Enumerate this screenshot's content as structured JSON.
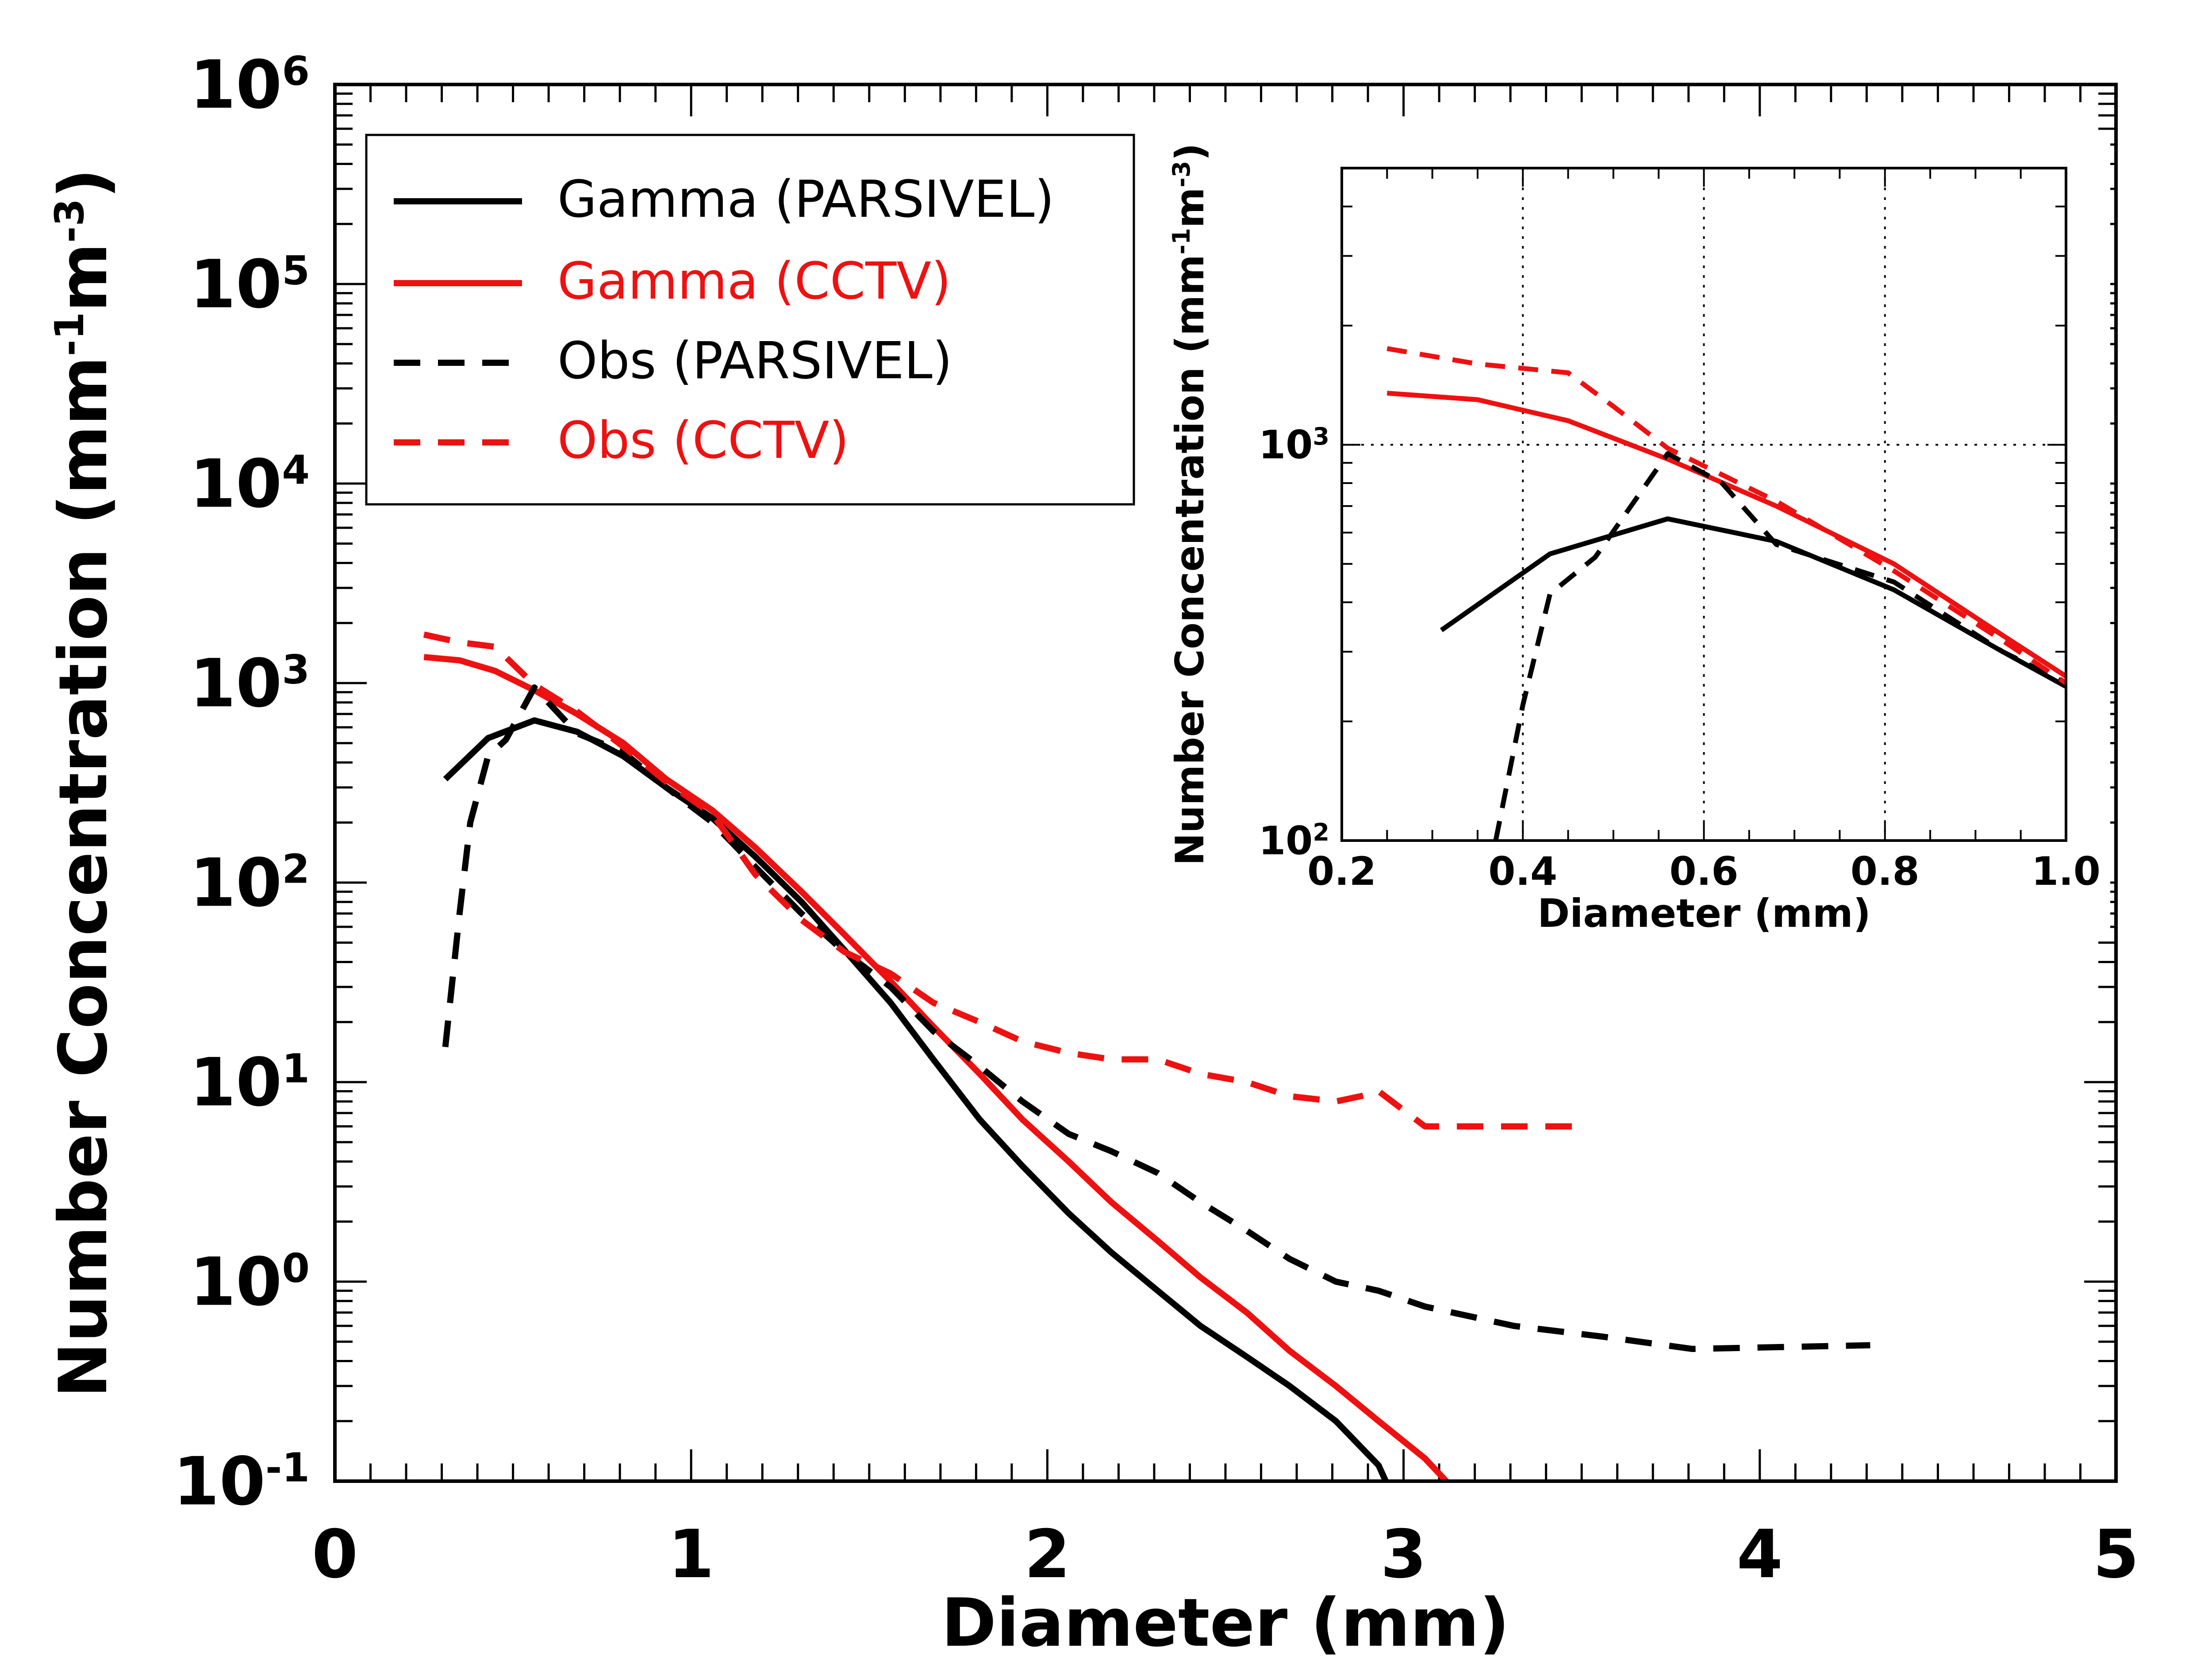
{
  "chart_data": [
    {
      "type": "line",
      "role": "main",
      "xlabel": "Diameter (mm)",
      "ylabel": "Number Concentration (mm-1m-3)",
      "ylabel_parts": {
        "base": "Number Concentration (mm",
        "sup1": "-1",
        "mid": "m",
        "sup2": "-3",
        "end": ")"
      },
      "xlim": [
        0,
        5
      ],
      "ylim": [
        0.1,
        1000000
      ],
      "yscale": "log",
      "x_ticks": [
        {
          "value": 0,
          "label": "0"
        },
        {
          "value": 1,
          "label": "1"
        },
        {
          "value": 2,
          "label": "2"
        },
        {
          "value": 3,
          "label": "3"
        },
        {
          "value": 4,
          "label": "4"
        },
        {
          "value": 5,
          "label": "5"
        }
      ],
      "y_ticks": [
        {
          "value": 0.1,
          "base": "10",
          "exp": "-1"
        },
        {
          "value": 1,
          "base": "10",
          "exp": "0"
        },
        {
          "value": 10,
          "base": "10",
          "exp": "1"
        },
        {
          "value": 100,
          "base": "10",
          "exp": "2"
        },
        {
          "value": 1000,
          "base": "10",
          "exp": "3"
        },
        {
          "value": 10000,
          "base": "10",
          "exp": "4"
        },
        {
          "value": 100000,
          "base": "10",
          "exp": "5"
        },
        {
          "value": 1000000,
          "base": "10",
          "exp": "6"
        }
      ],
      "grid": false,
      "legend_position": "top-left",
      "series": [
        {
          "name": "Gamma (PARSIVEL)",
          "color": "#000000",
          "dash": "solid",
          "points": [
            [
              0.31,
              330
            ],
            [
              0.43,
              530
            ],
            [
              0.56,
              650
            ],
            [
              0.68,
              570
            ],
            [
              0.81,
              430
            ],
            [
              0.93,
              300
            ],
            [
              1.06,
              210
            ],
            [
              1.18,
              135
            ],
            [
              1.31,
              80
            ],
            [
              1.43,
              46
            ],
            [
              1.56,
              25
            ],
            [
              1.68,
              13
            ],
            [
              1.81,
              6.5
            ],
            [
              1.93,
              3.8
            ],
            [
              2.06,
              2.2
            ],
            [
              2.18,
              1.4
            ],
            [
              2.31,
              0.9
            ],
            [
              2.43,
              0.6
            ],
            [
              2.56,
              0.42
            ],
            [
              2.68,
              0.3
            ],
            [
              2.81,
              0.2
            ],
            [
              2.93,
              0.12
            ],
            [
              2.95,
              0.1
            ]
          ]
        },
        {
          "name": "Gamma (CCTV)",
          "color": "#ee1111",
          "dash": "solid",
          "points": [
            [
              0.25,
              1350
            ],
            [
              0.35,
              1300
            ],
            [
              0.45,
              1150
            ],
            [
              0.56,
              920
            ],
            [
              0.68,
              700
            ],
            [
              0.81,
              500
            ],
            [
              0.93,
              330
            ],
            [
              1.06,
              230
            ],
            [
              1.18,
              150
            ],
            [
              1.31,
              90
            ],
            [
              1.43,
              55
            ],
            [
              1.56,
              32
            ],
            [
              1.68,
              19
            ],
            [
              1.81,
              11
            ],
            [
              1.93,
              6.5
            ],
            [
              2.06,
              4
            ],
            [
              2.18,
              2.5
            ],
            [
              2.31,
              1.6
            ],
            [
              2.43,
              1.05
            ],
            [
              2.56,
              0.7
            ],
            [
              2.68,
              0.45
            ],
            [
              2.81,
              0.3
            ],
            [
              2.93,
              0.2
            ],
            [
              3.06,
              0.13
            ],
            [
              3.12,
              0.1
            ]
          ]
        },
        {
          "name": "Obs (PARSIVEL)",
          "color": "#000000",
          "dash": "dashed",
          "points": [
            [
              0.31,
              15
            ],
            [
              0.35,
              70
            ],
            [
              0.38,
              200
            ],
            [
              0.43,
              430
            ],
            [
              0.48,
              520
            ],
            [
              0.56,
              950
            ],
            [
              0.68,
              560
            ],
            [
              0.81,
              450
            ],
            [
              0.93,
              300
            ],
            [
              1.06,
              200
            ],
            [
              1.18,
              120
            ],
            [
              1.31,
              70
            ],
            [
              1.43,
              45
            ],
            [
              1.56,
              30
            ],
            [
              1.68,
              18
            ],
            [
              1.81,
              12
            ],
            [
              1.93,
              8
            ],
            [
              2.06,
              5.5
            ],
            [
              2.18,
              4.5
            ],
            [
              2.31,
              3.5
            ],
            [
              2.43,
              2.5
            ],
            [
              2.56,
              1.8
            ],
            [
              2.68,
              1.3
            ],
            [
              2.81,
              1.0
            ],
            [
              2.93,
              0.9
            ],
            [
              3.06,
              0.75
            ],
            [
              3.31,
              0.6
            ],
            [
              3.56,
              0.53
            ],
            [
              3.81,
              0.46
            ],
            [
              4.06,
              0.47
            ],
            [
              4.31,
              0.48
            ]
          ]
        },
        {
          "name": "Obs (CCTV)",
          "color": "#ee1111",
          "dash": "dashed",
          "points": [
            [
              0.25,
              1750
            ],
            [
              0.35,
              1600
            ],
            [
              0.45,
              1520
            ],
            [
              0.56,
              980
            ],
            [
              0.68,
              720
            ],
            [
              0.81,
              480
            ],
            [
              0.93,
              320
            ],
            [
              1.06,
              220
            ],
            [
              1.18,
              110
            ],
            [
              1.31,
              65
            ],
            [
              1.43,
              45
            ],
            [
              1.56,
              35
            ],
            [
              1.68,
              25
            ],
            [
              1.81,
              20
            ],
            [
              1.93,
              16
            ],
            [
              2.06,
              14
            ],
            [
              2.18,
              13
            ],
            [
              2.31,
              13
            ],
            [
              2.43,
              11
            ],
            [
              2.56,
              10
            ],
            [
              2.68,
              8.5
            ],
            [
              2.81,
              8
            ],
            [
              2.88,
              8.5
            ],
            [
              2.93,
              9
            ],
            [
              3.06,
              6
            ],
            [
              3.31,
              6
            ],
            [
              3.5,
              6
            ]
          ]
        }
      ]
    },
    {
      "type": "line",
      "role": "inset",
      "xlabel": "Diameter (mm)",
      "ylabel": "Number Concentration (mm-1m-3)",
      "ylabel_parts": {
        "base": "Number Concentration (mm",
        "sup1": "-1",
        "mid": "m",
        "sup2": "-3",
        "end": ")"
      },
      "xlim": [
        0.2,
        1.0
      ],
      "ylim": [
        100,
        5000
      ],
      "yscale": "log",
      "x_ticks": [
        {
          "value": 0.2,
          "label": "0.2"
        },
        {
          "value": 0.4,
          "label": "0.4"
        },
        {
          "value": 0.6,
          "label": "0.6"
        },
        {
          "value": 0.8,
          "label": "0.8"
        },
        {
          "value": 1.0,
          "label": "1.0"
        }
      ],
      "y_ticks": [
        {
          "value": 100,
          "base": "10",
          "exp": "2"
        },
        {
          "value": 1000,
          "base": "10",
          "exp": "3"
        }
      ],
      "grid": true,
      "grid_x": [
        0.4,
        0.6,
        0.8
      ],
      "grid_y": [
        1000
      ],
      "series": [
        {
          "name": "Gamma (PARSIVEL)",
          "color": "#000000",
          "dash": "solid",
          "points": [
            [
              0.31,
              340
            ],
            [
              0.43,
              530
            ],
            [
              0.56,
              650
            ],
            [
              0.68,
              570
            ],
            [
              0.81,
              430
            ],
            [
              0.93,
              300
            ],
            [
              1.0,
              245
            ]
          ]
        },
        {
          "name": "Gamma (CCTV)",
          "color": "#ee1111",
          "dash": "solid",
          "points": [
            [
              0.25,
              1350
            ],
            [
              0.35,
              1300
            ],
            [
              0.45,
              1150
            ],
            [
              0.56,
              920
            ],
            [
              0.68,
              700
            ],
            [
              0.81,
              500
            ],
            [
              0.93,
              330
            ],
            [
              1.0,
              260
            ]
          ]
        },
        {
          "name": "Obs (PARSIVEL)",
          "color": "#000000",
          "dash": "dashed",
          "points": [
            [
              0.37,
              100
            ],
            [
              0.4,
              220
            ],
            [
              0.43,
              420
            ],
            [
              0.48,
              520
            ],
            [
              0.56,
              950
            ],
            [
              0.62,
              800
            ],
            [
              0.68,
              560
            ],
            [
              0.81,
              450
            ],
            [
              0.93,
              300
            ],
            [
              1.0,
              250
            ]
          ]
        },
        {
          "name": "Obs (CCTV)",
          "color": "#ee1111",
          "dash": "dashed",
          "points": [
            [
              0.25,
              1750
            ],
            [
              0.35,
              1600
            ],
            [
              0.45,
              1520
            ],
            [
              0.5,
              1250
            ],
            [
              0.56,
              980
            ],
            [
              0.68,
              720
            ],
            [
              0.81,
              480
            ],
            [
              0.93,
              320
            ],
            [
              1.0,
              250
            ]
          ]
        }
      ]
    }
  ]
}
